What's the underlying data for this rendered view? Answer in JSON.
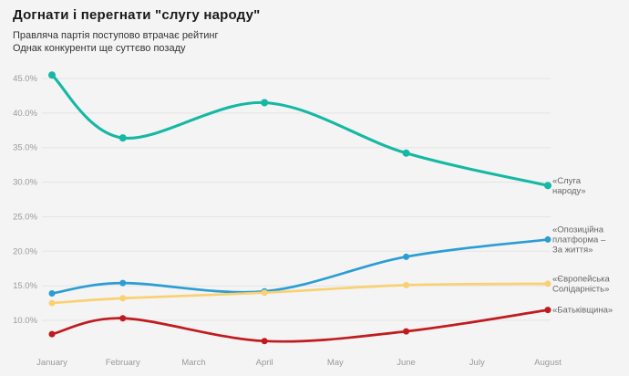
{
  "header": {
    "title": "Догнати і перегнати \"слугу народу\"",
    "subtitle_line1": "Правляча партія поступово втрачає рейтинг",
    "subtitle_line2": "Однак конкуренти ще суттєво позаду"
  },
  "chart_data": {
    "type": "line",
    "title": "Догнати і перегнати \"слугу народу\"",
    "categories": [
      "January",
      "February",
      "March",
      "April",
      "May",
      "June",
      "July",
      "August"
    ],
    "ylim": [
      4.8,
      47.5
    ],
    "grid": true,
    "legend_position": "right",
    "y_ticks": [
      {
        "value": 45,
        "label": "45.0%"
      },
      {
        "value": 40,
        "label": "40.0%"
      },
      {
        "value": 35,
        "label": "35.0%"
      },
      {
        "value": 30,
        "label": "30.0%"
      },
      {
        "value": 25,
        "label": "25.0%"
      },
      {
        "value": 20,
        "label": "20.0%"
      },
      {
        "value": 15,
        "label": "15.0%"
      },
      {
        "value": 10,
        "label": "10.0%"
      }
    ],
    "series": [
      {
        "name": "«Слуга народу»",
        "label_lines": [
          "«Слуга",
          "народу»"
        ],
        "color": "#15b8a3",
        "values": [
          45.5,
          36.4,
          null,
          41.5,
          null,
          34.2,
          null,
          29.5
        ]
      },
      {
        "name": "«Опозиційна платформа – За життя»",
        "label_lines": [
          "«Опозиційна",
          "платформа –",
          "За життя»"
        ],
        "color": "#2b9dd4",
        "values": [
          13.9,
          15.4,
          null,
          14.2,
          null,
          19.2,
          null,
          21.7
        ]
      },
      {
        "name": "«Європейська Солідарність»",
        "label_lines": [
          "«Європейська",
          "Солідарність»"
        ],
        "color": "#f9d173",
        "values": [
          12.5,
          13.2,
          null,
          14.0,
          null,
          15.1,
          null,
          15.3
        ]
      },
      {
        "name": "«Батьківщина»",
        "label_lines": [
          "«Батьківщина»"
        ],
        "color": "#c01b1f",
        "values": [
          8.0,
          10.3,
          null,
          7.0,
          null,
          8.4,
          null,
          11.5
        ]
      }
    ]
  }
}
